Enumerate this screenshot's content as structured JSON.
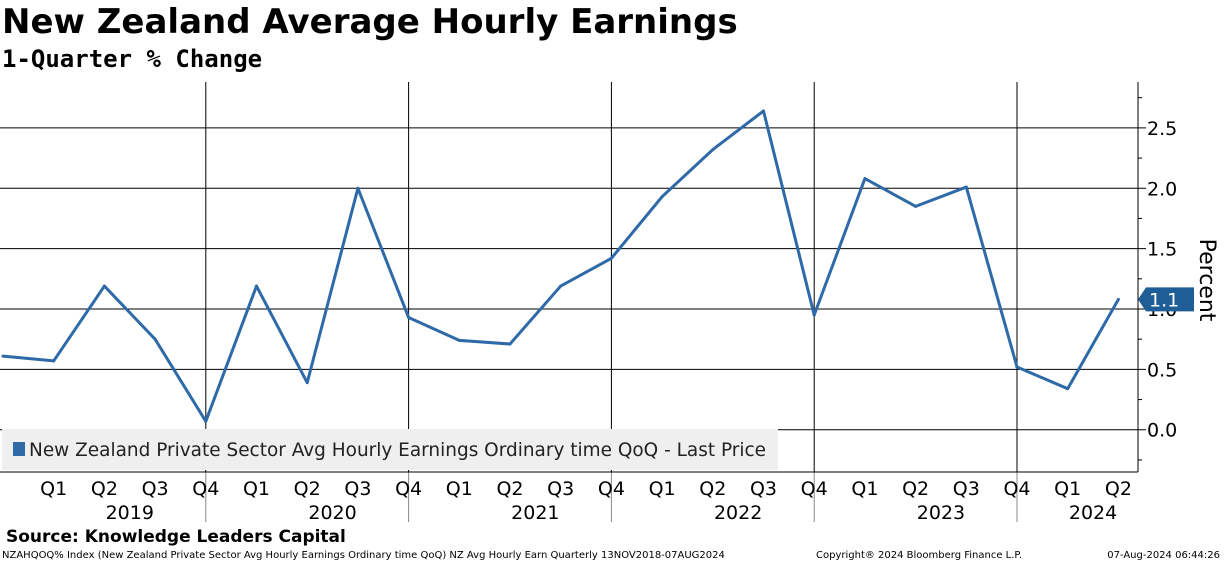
{
  "header": {
    "title": "New Zealand Average Hourly Earnings",
    "subtitle": "1-Quarter % Change"
  },
  "source": "Source: Knowledge Leaders Capital",
  "footer": {
    "left": "NZAHQOQ% Index (New Zealand Private Sector Avg Hourly Earnings Ordinary time QoQ) NZ Avg Hourly Earn  Quarterly 13NOV2018-07AUG2024",
    "middle": "Copyright® 2024 Bloomberg Finance L.P.",
    "right": "07-Aug-2024 06:44:26"
  },
  "chart_data": {
    "type": "line",
    "ylabel": "Percent",
    "ylim": [
      -0.35,
      2.88
    ],
    "yticks": [
      0.0,
      0.5,
      1.0,
      1.5,
      2.0,
      2.5
    ],
    "ytick_labels": [
      "0.0",
      "0.5",
      "1.0",
      "1.5",
      "2.0",
      "2.5"
    ],
    "y_axis_side": "right",
    "grid": true,
    "legend_position": "bottom-left",
    "line_color": "#2e6aa8",
    "last_value_label": "1.1",
    "quarter_labels": [
      "Q1",
      "Q2",
      "Q3",
      "Q4",
      "Q1",
      "Q2",
      "Q3",
      "Q4",
      "Q1",
      "Q2",
      "Q3",
      "Q4",
      "Q1",
      "Q2",
      "Q3",
      "Q4",
      "Q1",
      "Q2",
      "Q3",
      "Q4",
      "Q1",
      "Q2"
    ],
    "year_labels": [
      "2019",
      "2020",
      "2021",
      "2022",
      "2023",
      "2024"
    ],
    "series": [
      {
        "name": "New Zealand Private Sector Avg Hourly Earnings Ordinary time QoQ - Last Price",
        "x": [
          "2018 Q4",
          "2019 Q1",
          "2019 Q2",
          "2019 Q3",
          "2019 Q4",
          "2020 Q1",
          "2020 Q2",
          "2020 Q3",
          "2020 Q4",
          "2021 Q1",
          "2021 Q2",
          "2021 Q3",
          "2021 Q4",
          "2022 Q1",
          "2022 Q2",
          "2022 Q3",
          "2022 Q4",
          "2023 Q1",
          "2023 Q2",
          "2023 Q3",
          "2023 Q4",
          "2024 Q1",
          "2024 Q2"
        ],
        "values": [
          0.61,
          0.57,
          1.19,
          0.75,
          0.07,
          1.19,
          0.39,
          2.0,
          0.93,
          0.74,
          0.71,
          1.19,
          1.42,
          1.93,
          2.32,
          2.64,
          0.95,
          2.08,
          1.85,
          2.01,
          0.52,
          0.34,
          1.08
        ]
      }
    ]
  }
}
